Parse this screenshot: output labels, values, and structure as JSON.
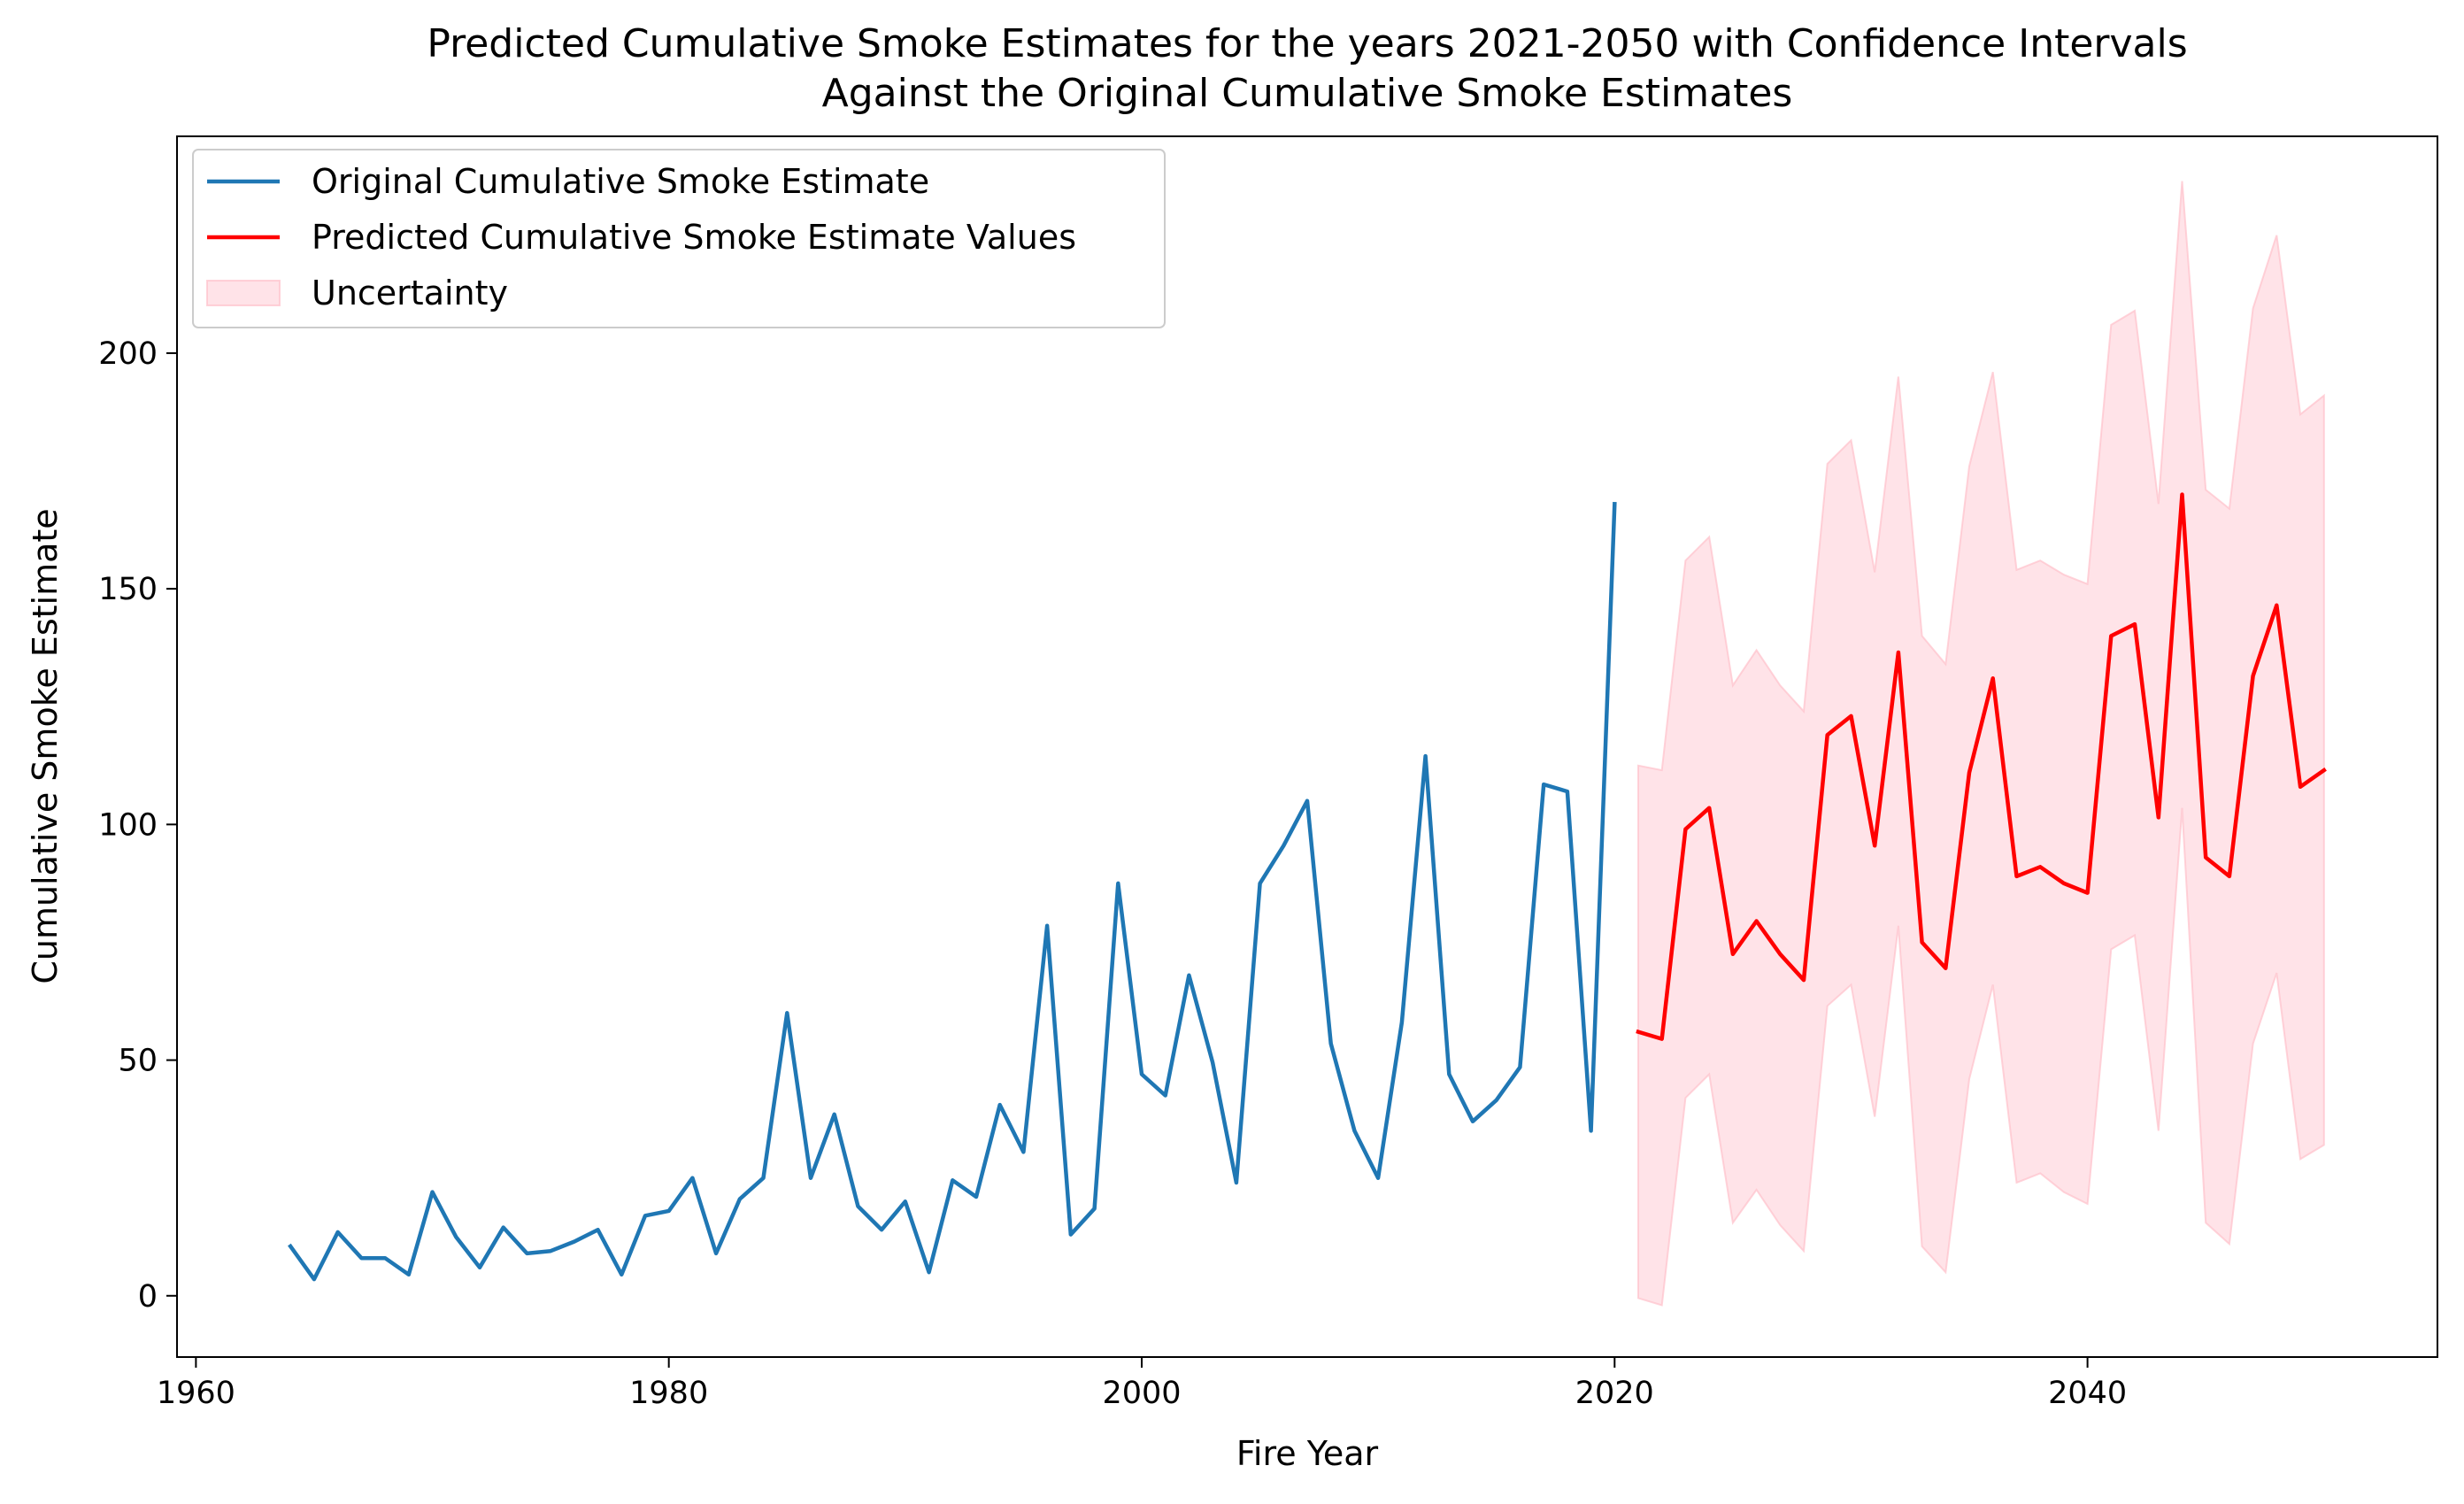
{
  "chart_data": {
    "type": "line",
    "title_line1": "Predicted Cumulative Smoke Estimates for the years 2021-2050 with Confidence Intervals",
    "title_line2": "Against the Original Cumulative Smoke Estimates",
    "xlabel": "Fire Year",
    "ylabel": "Cumulative Smoke Estimate",
    "xlim": [
      1959.2,
      2054.8
    ],
    "ylim": [
      -13,
      246
    ],
    "x_ticks": [
      1960,
      1980,
      2000,
      2020,
      2040
    ],
    "y_ticks": [
      0,
      50,
      100,
      150,
      200
    ],
    "grid": false,
    "legend_position": "upper-left",
    "legend": [
      {
        "label": "Original Cumulative Smoke Estimate",
        "kind": "line",
        "color": "#1f77b4"
      },
      {
        "label": "Predicted Cumulative Smoke Estimate Values",
        "kind": "line",
        "color": "#ff0000"
      },
      {
        "label": "Uncertainty",
        "kind": "area",
        "color": "#ffc0cb"
      }
    ],
    "series": [
      {
        "name": "Original Cumulative Smoke Estimate",
        "color": "#1f77b4",
        "x": [
          1964,
          1965,
          1966,
          1967,
          1968,
          1969,
          1970,
          1971,
          1972,
          1973,
          1974,
          1975,
          1976,
          1977,
          1978,
          1979,
          1980,
          1981,
          1982,
          1983,
          1984,
          1985,
          1986,
          1987,
          1988,
          1989,
          1990,
          1991,
          1992,
          1993,
          1994,
          1995,
          1996,
          1997,
          1998,
          1999,
          2000,
          2001,
          2002,
          2003,
          2004,
          2005,
          2006,
          2007,
          2008,
          2009,
          2010,
          2011,
          2012,
          2013,
          2014,
          2015,
          2016,
          2017,
          2018,
          2019,
          2020
        ],
        "y": [
          10.5,
          3.5,
          13.5,
          8,
          8,
          4.5,
          22,
          12.5,
          6,
          14.5,
          9,
          9.5,
          11.5,
          14,
          4.5,
          17,
          18,
          25,
          9,
          20.5,
          25,
          60,
          25,
          38.5,
          19,
          14,
          20,
          5,
          24.5,
          21,
          40.5,
          30.5,
          78.5,
          13,
          18.5,
          87.5,
          47,
          42.5,
          68,
          49.5,
          24,
          87.5,
          95.5,
          105,
          53.5,
          35,
          25,
          58,
          114.5,
          47,
          37,
          41.5,
          48.5,
          108.5,
          107,
          35,
          168
        ]
      },
      {
        "name": "Predicted Cumulative Smoke Estimate Values",
        "color": "#ff0000",
        "x": [
          2021,
          2022,
          2023,
          2024,
          2025,
          2026,
          2027,
          2028,
          2029,
          2030,
          2031,
          2032,
          2033,
          2034,
          2035,
          2036,
          2037,
          2038,
          2039,
          2040,
          2041,
          2042,
          2043,
          2044,
          2045,
          2046,
          2047,
          2048,
          2049,
          2050
        ],
        "y": [
          56,
          54.5,
          99,
          103.5,
          72.5,
          79.5,
          72.5,
          67,
          119,
          123,
          95.5,
          136.5,
          75,
          69.5,
          111,
          131,
          89,
          91,
          87.5,
          85.5,
          140,
          142.5,
          101.5,
          170,
          93,
          89,
          131.5,
          146.5,
          108,
          111.5
        ]
      }
    ],
    "uncertainty": {
      "name": "Uncertainty",
      "color": "#ffc0cb",
      "x": [
        2021,
        2022,
        2023,
        2024,
        2025,
        2026,
        2027,
        2028,
        2029,
        2030,
        2031,
        2032,
        2033,
        2034,
        2035,
        2036,
        2037,
        2038,
        2039,
        2040,
        2041,
        2042,
        2043,
        2044,
        2045,
        2046,
        2047,
        2048,
        2049,
        2050
      ],
      "upper": [
        112.5,
        111.5,
        156,
        161,
        129.5,
        137,
        129.5,
        124,
        176.5,
        181.5,
        153.5,
        195,
        140,
        134,
        176,
        196,
        154,
        156,
        153,
        151,
        206,
        209,
        168,
        236.5,
        171,
        167,
        209.5,
        225,
        187,
        191
      ],
      "lower": [
        -0.5,
        -2,
        42,
        47,
        15.5,
        22.5,
        15,
        9.5,
        61.5,
        66,
        38,
        78.5,
        10.5,
        5,
        46,
        66,
        24,
        26,
        22,
        19.5,
        73.5,
        76.5,
        35,
        103.5,
        15.5,
        11,
        53.5,
        68.5,
        29,
        32
      ]
    }
  }
}
